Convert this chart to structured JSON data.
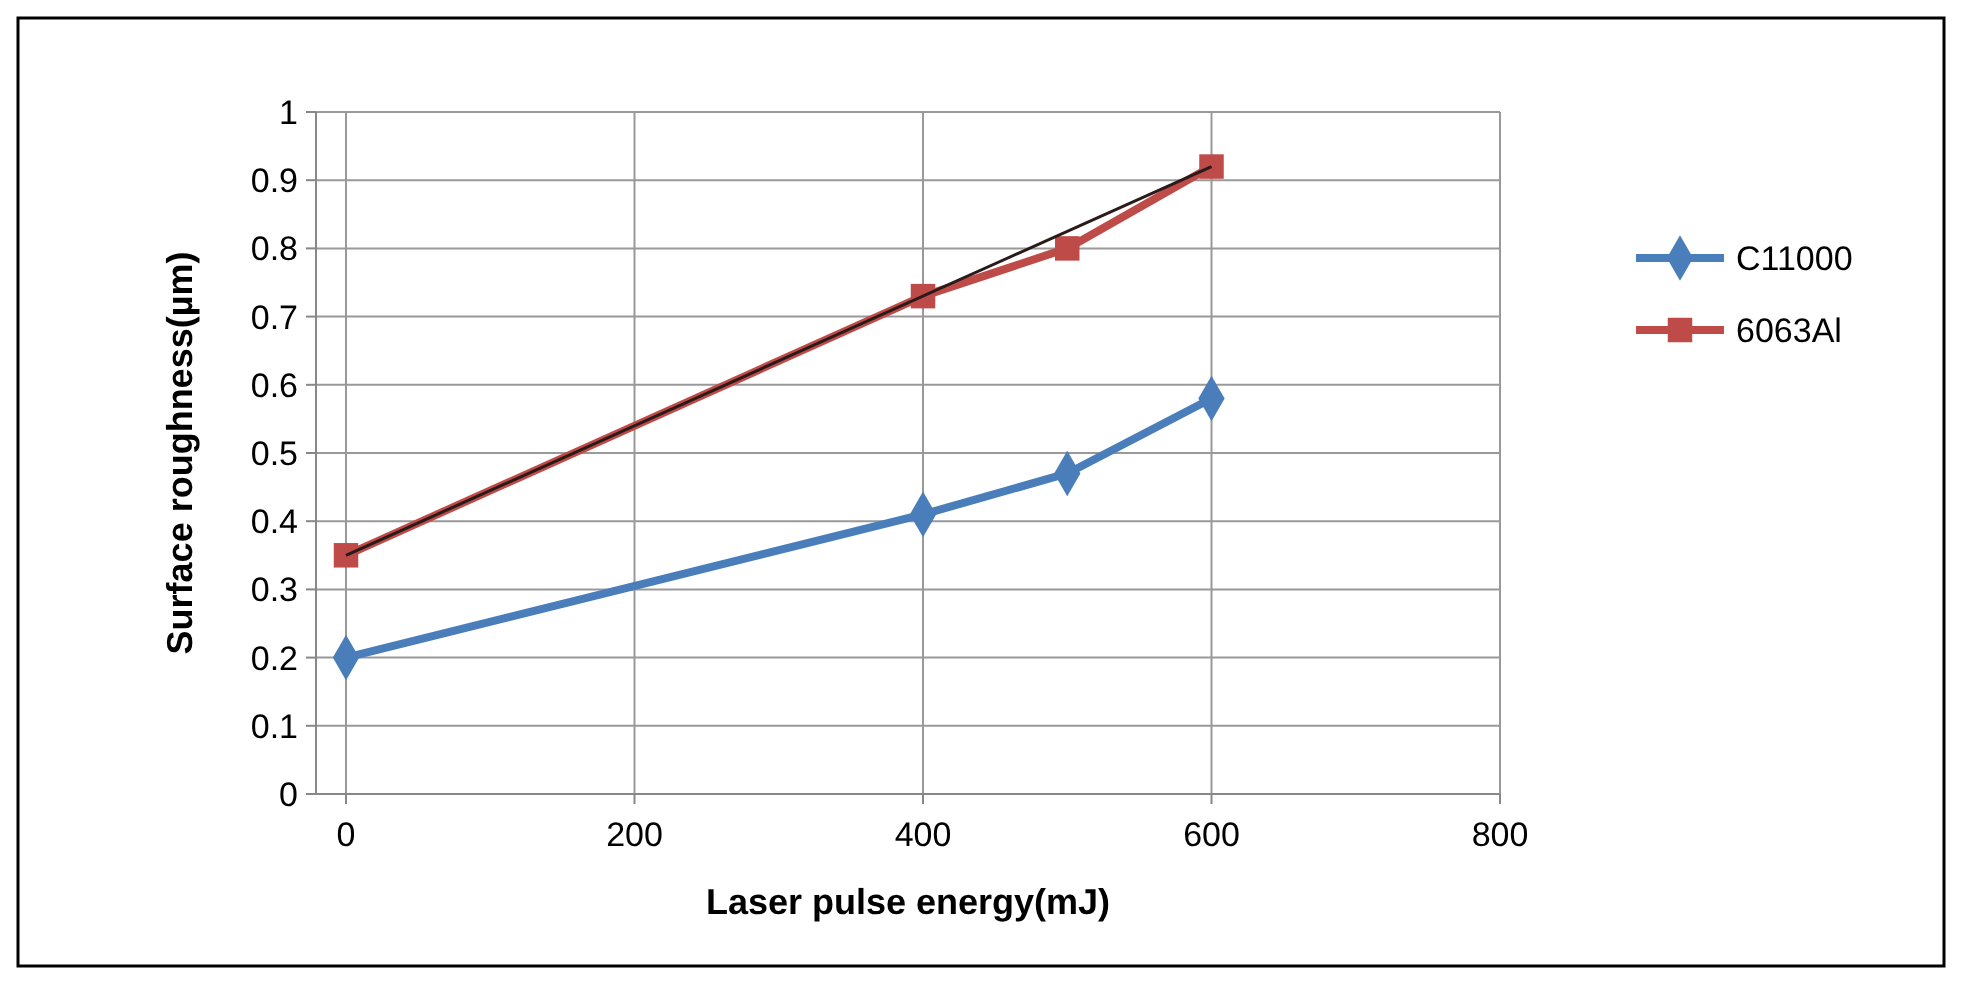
{
  "chart_data": {
    "type": "line",
    "xlabel": "Laser pulse energy(mJ)",
    "ylabel": "Surface roughness(µm)",
    "xlim": [
      0,
      800
    ],
    "xticks": [
      0,
      200,
      400,
      600,
      800
    ],
    "ylim": [
      0,
      1
    ],
    "yticks": [
      0,
      0.1,
      0.2,
      0.3,
      0.4,
      0.5,
      0.6,
      0.7,
      0.8,
      0.9,
      1
    ],
    "grid": true,
    "legend": "right",
    "series": [
      {
        "name": "C11000",
        "color": "#4a7ebb",
        "x": [
          0,
          400,
          500,
          600
        ],
        "values": [
          0.2,
          0.41,
          0.47,
          0.58
        ],
        "marker": "diamond"
      },
      {
        "name": "6063Al",
        "color": "#be4b48",
        "x": [
          0,
          400,
          500,
          600
        ],
        "values": [
          0.35,
          0.73,
          0.8,
          0.92
        ],
        "marker": "square"
      },
      {
        "type": "line",
        "color": "#2a1a1a",
        "x": [
          0,
          600
        ],
        "values": [
          0.35,
          0.92
        ],
        "marker": "none"
      }
    ]
  }
}
